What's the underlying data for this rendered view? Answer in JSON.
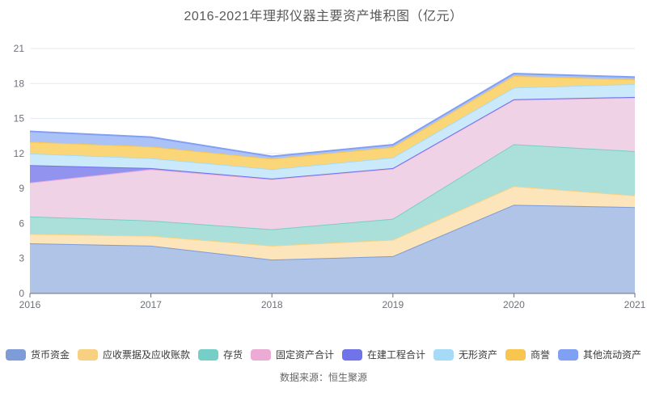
{
  "title": "2016-2021年理邦仪器主要资产堆积图（亿元）",
  "source": "数据来源：恒生聚源",
  "axis_colors": {
    "grid": "#e4eaf2",
    "axis_line": "#6E7079",
    "tick_label": "#6E7079"
  },
  "chart_data": {
    "type": "area",
    "stacked": true,
    "title": "2016-2021年理邦仪器主要资产堆积图（亿元）",
    "x": [
      "2016",
      "2017",
      "2018",
      "2019",
      "2020",
      "2021"
    ],
    "ylim": [
      0,
      21
    ],
    "yticks": [
      0,
      3,
      6,
      9,
      12,
      15,
      18,
      21
    ],
    "grid": true,
    "legend_position": "bottom",
    "series": [
      {
        "name": "货币资金",
        "color": "#7D9CD8",
        "area_color": "#AFC4E7",
        "values": [
          4.3,
          4.1,
          2.9,
          3.2,
          7.6,
          7.4
        ]
      },
      {
        "name": "应收票据及应收账款",
        "color": "#F8D082",
        "area_color": "#FCE4BB",
        "values": [
          0.8,
          0.85,
          1.2,
          1.4,
          1.6,
          1.0
        ]
      },
      {
        "name": "存货",
        "color": "#76CFC6",
        "area_color": "#ABE0DA",
        "values": [
          1.5,
          1.3,
          1.4,
          1.8,
          3.6,
          3.8
        ]
      },
      {
        "name": "固定资产合计",
        "color": "#EBABD4",
        "area_color": "#F0D2E6",
        "values": [
          2.9,
          4.4,
          4.3,
          4.3,
          3.8,
          4.6
        ]
      },
      {
        "name": "在建工程合计",
        "color": "#7173E9",
        "area_color": "#9193EE",
        "values": [
          1.5,
          0.1,
          0.05,
          0.05,
          0.05,
          0.05
        ]
      },
      {
        "name": "无形资产",
        "color": "#A6DBF7",
        "area_color": "#CAEAFB",
        "values": [
          1.0,
          0.85,
          0.8,
          0.9,
          1.0,
          1.1
        ]
      },
      {
        "name": "商誉",
        "color": "#F8C64F",
        "area_color": "#FAD678",
        "values": [
          1.0,
          1.0,
          0.9,
          0.9,
          1.0,
          0.4
        ]
      },
      {
        "name": "其他流动资产",
        "color": "#80A0F4",
        "area_color": "#ABC2F7",
        "values": [
          0.9,
          0.8,
          0.2,
          0.2,
          0.2,
          0.2
        ]
      }
    ]
  }
}
